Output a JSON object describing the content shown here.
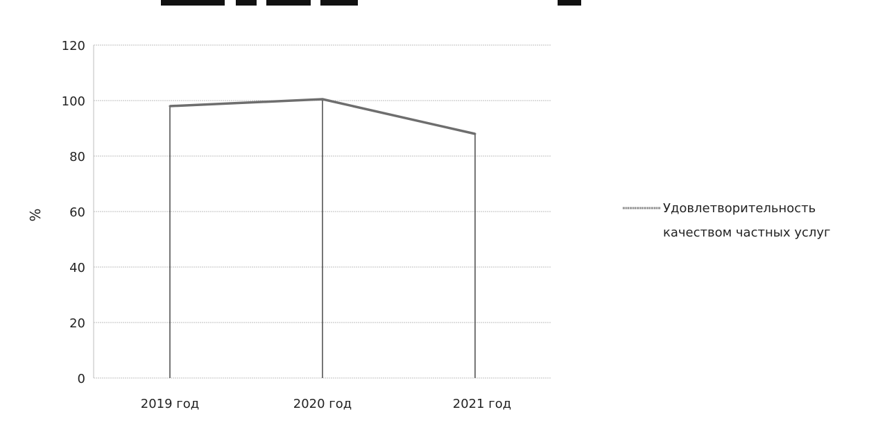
{
  "chart_data": {
    "type": "line",
    "title": "",
    "xlabel": "",
    "ylabel": "%",
    "categories": [
      "2019 год",
      "2020 год",
      "2021 год"
    ],
    "series": [
      {
        "name": "Удовлетворительность качеством частных услуг",
        "values": [
          98,
          100.5,
          88
        ]
      }
    ],
    "ylim": [
      0,
      120
    ],
    "yticks": [
      0,
      20,
      40,
      60,
      80,
      100,
      120
    ],
    "grid": true,
    "drop_lines": true,
    "legend_position": "right",
    "legend_lines": [
      "Удовлетворительность",
      "качеством частных услуг"
    ],
    "series_color": "#6e6e6e",
    "grid_color": "#bdbdbd"
  }
}
